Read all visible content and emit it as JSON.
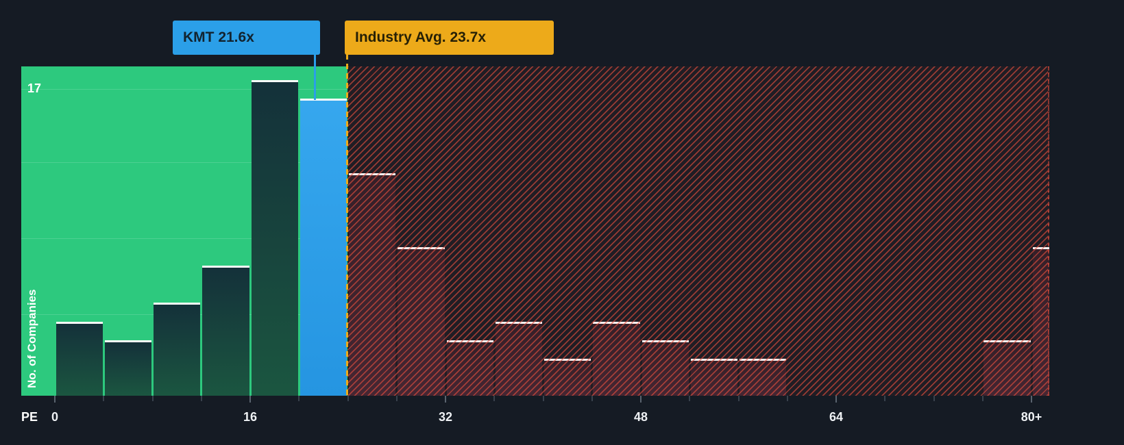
{
  "background_color": "#151b24",
  "chart_data": {
    "type": "bar",
    "variant": "histogram",
    "xlabel": "PE",
    "ylabel": "No. of Companies",
    "x_tick_labels": [
      "0",
      "16",
      "32",
      "48",
      "64",
      "80+"
    ],
    "x_tick_values": [
      0,
      16,
      32,
      48,
      64,
      80
    ],
    "bin_size": 4,
    "ylim": [
      0,
      17
    ],
    "y_max_annotation": "17",
    "grid": "horizontal-faint",
    "bins": [
      {
        "range": "0-4",
        "count": 4
      },
      {
        "range": "4-8",
        "count": 3
      },
      {
        "range": "8-12",
        "count": 5
      },
      {
        "range": "12-16",
        "count": 7
      },
      {
        "range": "16-20",
        "count": 17
      },
      {
        "range": "20-24",
        "count": 16,
        "company": "KMT"
      },
      {
        "range": "24-28",
        "count": 12
      },
      {
        "range": "28-32",
        "count": 8
      },
      {
        "range": "32-36",
        "count": 3
      },
      {
        "range": "36-40",
        "count": 4
      },
      {
        "range": "40-44",
        "count": 2
      },
      {
        "range": "44-48",
        "count": 4
      },
      {
        "range": "48-52",
        "count": 3
      },
      {
        "range": "52-56",
        "count": 2
      },
      {
        "range": "56-60",
        "count": 2
      },
      {
        "range": "60-64",
        "count": 0
      },
      {
        "range": "64-68",
        "count": 0
      },
      {
        "range": "68-72",
        "count": 0
      },
      {
        "range": "72-76",
        "count": 0
      },
      {
        "range": "76-80",
        "count": 3
      },
      {
        "range": "80+",
        "count": 8
      }
    ],
    "markers": {
      "company": {
        "label": "KMT 21.6x",
        "value": 21.6,
        "color": "#2b9fe8"
      },
      "industry": {
        "label": "Industry Avg. 23.7x",
        "value": 23.7,
        "color": "#edaa1a"
      }
    },
    "zones": [
      {
        "name": "below-industry",
        "style": "solid-green",
        "color": "#2dc97e",
        "from": 0,
        "to": 23.7
      },
      {
        "name": "above-industry",
        "style": "hatched-red",
        "color": "#e44e3e",
        "from": 23.7,
        "to": 84
      }
    ]
  }
}
